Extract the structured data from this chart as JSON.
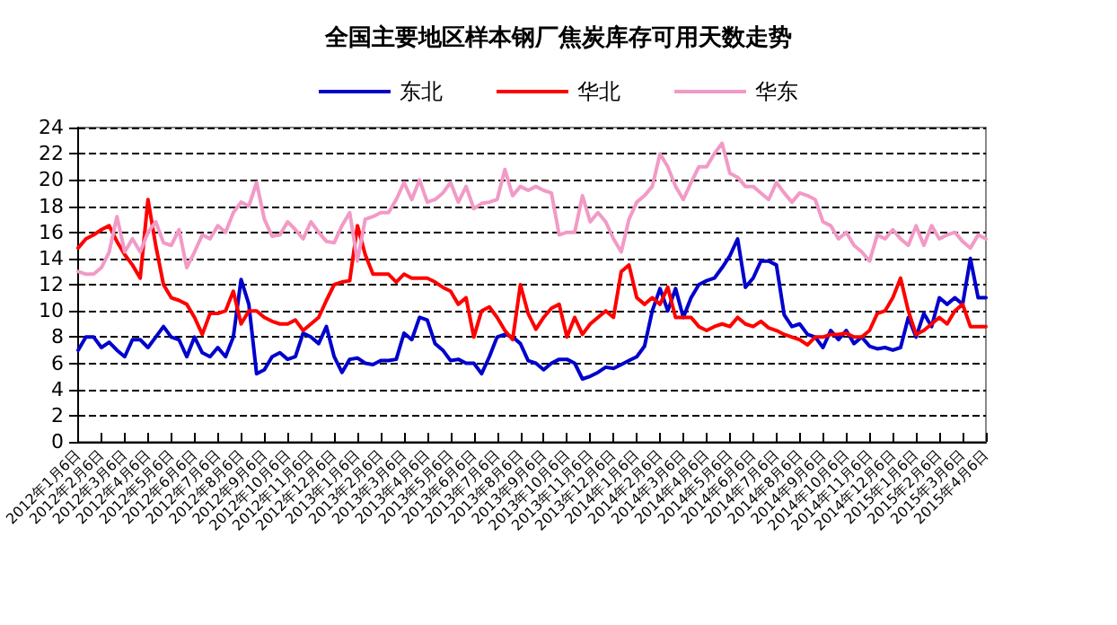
{
  "chart_data": {
    "type": "line",
    "title": "全国主要地区样本钢厂焦炭库存可用天数走势",
    "categories": [
      "2012年1月6日",
      null,
      null,
      "2012年2月6日",
      null,
      null,
      "2012年3月6日",
      null,
      null,
      "2012年4月6日",
      null,
      null,
      "2012年5月6日",
      null,
      null,
      "2012年6月6日",
      null,
      null,
      "2012年7月6日",
      null,
      null,
      "2012年8月6日",
      null,
      null,
      "2012年9月6日",
      null,
      null,
      "2012年10月6日",
      null,
      null,
      "2012年11月6日",
      null,
      null,
      "2012年12月6日",
      null,
      null,
      "2013年1月6日",
      null,
      null,
      "2013年2月6日",
      null,
      null,
      "2013年3月6日",
      null,
      null,
      "2013年4月6日",
      null,
      null,
      "2013年5月6日",
      null,
      null,
      "2013年6月6日",
      null,
      null,
      "2013年7月6日",
      null,
      null,
      "2013年8月6日",
      null,
      null,
      "2013年9月6日",
      null,
      null,
      "2013年10月6日",
      null,
      null,
      "2013年11月6日",
      null,
      null,
      "2013年12月6日",
      null,
      null,
      "2014年1月6日",
      null,
      null,
      "2014年2月6日",
      null,
      null,
      "2014年3月6日",
      null,
      null,
      "2014年4月6日",
      null,
      null,
      "2014年5月6日",
      null,
      null,
      "2014年6月6日",
      null,
      null,
      "2014年7月6日",
      null,
      null,
      "2014年8月6日",
      null,
      null,
      "2014年9月6日",
      null,
      null,
      "2014年10月6日",
      null,
      null,
      "2014年11月6日",
      null,
      null,
      "2014年12月6日",
      null,
      null,
      "2015年1月6日",
      null,
      null,
      "2015年2月6日",
      null,
      null,
      "2015年3月6日",
      null,
      null,
      "2015年4月6日"
    ],
    "series": [
      {
        "name": "东北",
        "color": "#0000cc",
        "values": [
          7,
          8,
          8,
          7.2,
          7.6,
          7,
          6.5,
          7.8,
          7.8,
          7.2,
          8,
          8.8,
          8,
          7.8,
          6.5,
          8,
          6.8,
          6.5,
          7.2,
          6.5,
          8,
          12.4,
          10.5,
          5.2,
          5.5,
          6.5,
          6.8,
          6.3,
          6.5,
          8.3,
          8,
          7.5,
          8.8,
          6.5,
          5.3,
          6.3,
          6.4,
          6,
          5.9,
          6.2,
          6.2,
          6.3,
          8.3,
          7.8,
          9.5,
          9.3,
          7.5,
          7,
          6.2,
          6.3,
          6,
          6,
          5.2,
          6.5,
          8,
          8.2,
          8,
          7.5,
          6.2,
          6,
          5.5,
          6,
          6.3,
          6.3,
          6,
          4.8,
          5,
          5.3,
          5.7,
          5.6,
          5.9,
          6.2,
          6.5,
          7.3,
          10,
          11.7,
          10,
          11.7,
          9.5,
          11,
          12,
          12.3,
          12.5,
          13.3,
          14.2,
          15.5,
          11.8,
          12.5,
          13.8,
          13.8,
          13.5,
          9.7,
          8.8,
          9,
          8.2,
          8,
          7.2,
          8.5,
          7.8,
          8.5,
          7.5,
          8,
          7.3,
          7.1,
          7.2,
          7,
          7.2,
          9.5,
          8,
          9.8,
          8.8,
          11,
          10.5,
          11,
          10.5,
          14,
          11,
          11
        ]
      },
      {
        "name": "华北",
        "color": "#ff0000",
        "values": [
          14.8,
          15.5,
          15.8,
          16.2,
          16.5,
          15.3,
          14.3,
          13.5,
          12.5,
          18.5,
          15,
          12,
          11,
          10.8,
          10.5,
          9.5,
          8.2,
          9.8,
          9.8,
          10,
          11.5,
          9,
          10,
          10,
          9.5,
          9.2,
          9,
          9,
          9.3,
          8.5,
          9,
          9.5,
          10.8,
          12,
          12.2,
          12.3,
          16.5,
          14.3,
          12.8,
          12.8,
          12.8,
          12.2,
          12.8,
          12.5,
          12.5,
          12.5,
          12.2,
          11.8,
          11.5,
          10.5,
          11,
          8,
          10,
          10.3,
          9.5,
          8.5,
          7.8,
          12,
          9.8,
          8.6,
          9.5,
          10.2,
          10.5,
          8,
          9.5,
          8.2,
          9,
          9.5,
          10,
          9.5,
          13,
          13.5,
          11,
          10.5,
          11,
          10.5,
          11.8,
          9.5,
          9.5,
          9.5,
          8.8,
          8.5,
          8.8,
          9,
          8.8,
          9.5,
          9,
          8.8,
          9.2,
          8.7,
          8.5,
          8.2,
          8,
          7.8,
          7.4,
          8,
          8,
          8.2,
          8.2,
          8.3,
          8,
          8,
          8.5,
          9.8,
          10,
          11,
          12.5,
          10,
          8.2,
          8.5,
          9,
          9.5,
          9,
          10,
          10.5,
          8.8,
          8.8,
          8.8
        ]
      },
      {
        "name": "华东",
        "color": "#f29ac6",
        "values": [
          13,
          12.8,
          12.8,
          13.3,
          14.5,
          17.2,
          14.5,
          15.5,
          14.5,
          16,
          16.8,
          15.2,
          15,
          16.2,
          13.3,
          14.5,
          15.8,
          15.5,
          16.5,
          16,
          17.5,
          18.3,
          18,
          19.8,
          17,
          15.7,
          15.8,
          16.8,
          16.2,
          15.5,
          16.8,
          16,
          15.3,
          15.2,
          16.5,
          17.5,
          13.8,
          17,
          17.2,
          17.5,
          17.5,
          18.5,
          19.8,
          18.5,
          20,
          18.3,
          18.5,
          19,
          19.8,
          18.3,
          19.5,
          17.8,
          18.2,
          18.3,
          18.5,
          20.8,
          18.8,
          19.5,
          19.2,
          19.5,
          19.2,
          19,
          15.8,
          16,
          16,
          18.8,
          16.8,
          17.5,
          16.8,
          15.5,
          14.5,
          17,
          18.3,
          18.8,
          19.5,
          22,
          21,
          19.5,
          18.5,
          19.8,
          21,
          21,
          22,
          22.8,
          20.5,
          20.2,
          19.5,
          19.5,
          19,
          18.5,
          19.8,
          19,
          18.3,
          19,
          18.8,
          18.5,
          16.8,
          16.5,
          15.5,
          16,
          15,
          14.5,
          13.8,
          15.8,
          15.5,
          16.2,
          15.5,
          15,
          16.5,
          15,
          16.5,
          15.5,
          15.8,
          16,
          15.3,
          14.8,
          15.8,
          15.5
        ]
      }
    ],
    "ylim": [
      0,
      24
    ],
    "yticks": [
      0,
      2,
      4,
      6,
      8,
      10,
      12,
      14,
      16,
      18,
      20,
      22,
      24
    ],
    "grid": "y",
    "legend": "top",
    "marker": "none",
    "line_style": "solid"
  }
}
